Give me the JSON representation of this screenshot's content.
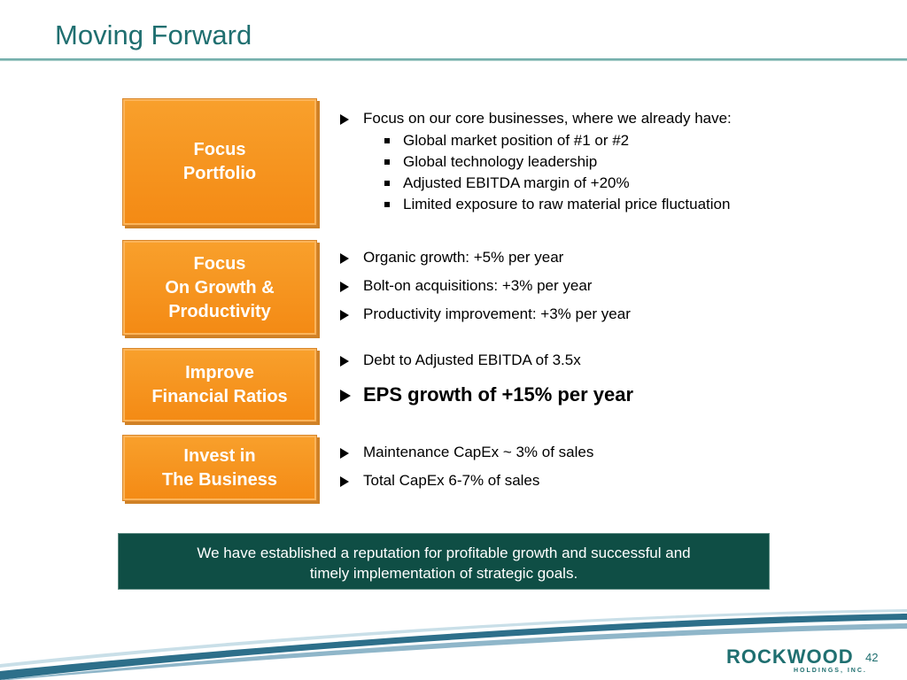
{
  "slide": {
    "title": "Moving Forward",
    "page_number": "42"
  },
  "boxes": [
    {
      "line1": "Focus",
      "line2": "Portfolio"
    },
    {
      "line1": "Focus",
      "line2": "On Growth &",
      "line3": "Productivity"
    },
    {
      "line1": "Improve",
      "line2": "Financial Ratios"
    },
    {
      "line1": "Invest in",
      "line2": "The Business"
    }
  ],
  "bullets": {
    "portfolio": {
      "main": "Focus on our core businesses, where we already have:",
      "sub": [
        "Global market position of #1 or #2",
        "Global technology leadership",
        "Adjusted EBITDA margin of +20%",
        "Limited exposure to raw material price fluctuation"
      ]
    },
    "growth": [
      "Organic growth: +5% per year",
      "Bolt-on acquisitions:  +3% per year",
      "Productivity improvement:  +3% per year"
    ],
    "ratios": [
      "Debt to Adjusted EBITDA of 3.5x",
      "EPS growth of +15% per year"
    ],
    "invest": [
      "Maintenance CapEx ~ 3% of sales",
      "Total CapEx 6-7% of sales"
    ]
  },
  "banner": {
    "line1": "We have established a reputation for profitable growth and successful and",
    "line2": "timely implementation of strategic goals."
  },
  "logo": {
    "name": "ROCKWOOD",
    "subtitle": "HOLDINGS, INC."
  },
  "colors": {
    "title": "#1f6f70",
    "box_orange": "#f7941d",
    "banner_green": "#0f4e45"
  }
}
